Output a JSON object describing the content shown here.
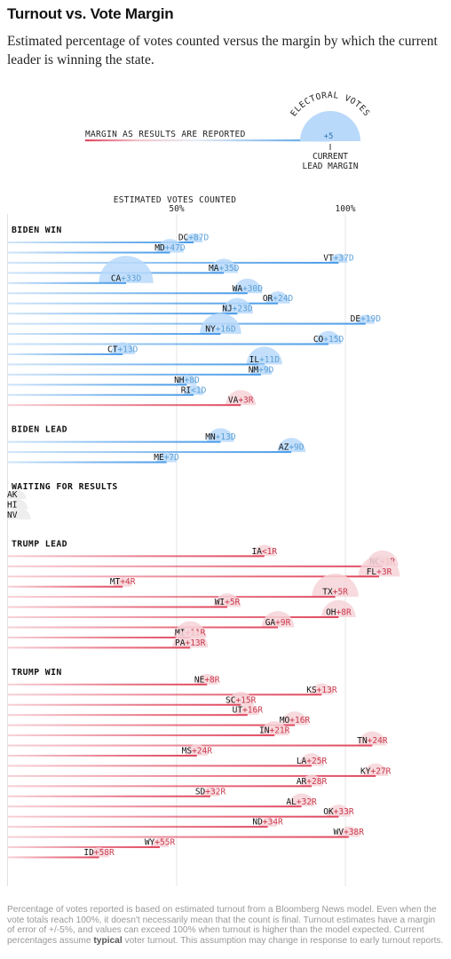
{
  "header": {
    "title": "Turnout vs. Vote Margin",
    "subtitle": "Estimated percentage of votes counted versus the margin by which the current leader is winning the state."
  },
  "legend": {
    "margin_label": "MARGIN AS RESULTS ARE REPORTED",
    "ev_label": "ELECTORAL VOTES",
    "sample_value": "+5",
    "lead_label_1": "CURRENT",
    "lead_label_2": "LEAD MARGIN"
  },
  "axis": {
    "title": "ESTIMATED VOTES COUNTED",
    "ticks": [
      {
        "value": 50,
        "label": "50%"
      },
      {
        "value": 100,
        "label": "100%"
      }
    ]
  },
  "colors": {
    "dem": "#4a9be8",
    "dem_bubble": "#b9d9fa",
    "dem_text": "#5b9fd6",
    "rep": "#e0475e",
    "rep_bubble": "#f6d3d8",
    "rep_text": "#c8394c",
    "grid": "#e6e6e6"
  },
  "footnote": {
    "text_before": "Percentage of votes reported is based on estimated turnout from a Bloomberg News model. Even when the vote totals reach 100%, it doesn't necessarily mean that the count is final. Turnout estimates have a margin of error of +/-5%, and values can exceed 100% when turnout is higher than the model expected. Current percentages assume ",
    "bold": "typical",
    "text_after": " voter turnout. This assumption may change in response to early turnout reports."
  },
  "chart_data": {
    "type": "bar",
    "x_axis": "estimated votes counted (%)",
    "xlim": [
      0,
      120
    ],
    "groups": [
      {
        "name": "BIDEN WIN",
        "states": [
          {
            "state": "DC",
            "margin": "+87D",
            "party": "D",
            "counted": 55,
            "ev": 3
          },
          {
            "state": "MD",
            "margin": "+47D",
            "party": "D",
            "counted": 48,
            "ev": 10
          },
          {
            "state": "VT",
            "margin": "+37D",
            "party": "D",
            "counted": 98,
            "ev": 3
          },
          {
            "state": "MA",
            "margin": "+35D",
            "party": "D",
            "counted": 64,
            "ev": 11
          },
          {
            "state": "CA",
            "margin": "+33D",
            "party": "D",
            "counted": 35,
            "ev": 55
          },
          {
            "state": "WA",
            "margin": "+30D",
            "party": "D",
            "counted": 71,
            "ev": 12
          },
          {
            "state": "OR",
            "margin": "+24D",
            "party": "D",
            "counted": 80,
            "ev": 7
          },
          {
            "state": "NJ",
            "margin": "+23D",
            "party": "D",
            "counted": 68,
            "ev": 14
          },
          {
            "state": "DE",
            "margin": "+19D",
            "party": "D",
            "counted": 106,
            "ev": 3
          },
          {
            "state": "NY",
            "margin": "+16D",
            "party": "D",
            "counted": 63,
            "ev": 29
          },
          {
            "state": "CO",
            "margin": "+15D",
            "party": "D",
            "counted": 95,
            "ev": 9
          },
          {
            "state": "CT",
            "margin": "+13D",
            "party": "D",
            "counted": 34,
            "ev": 7
          },
          {
            "state": "IL",
            "margin": "+11D",
            "party": "D",
            "counted": 76,
            "ev": 20
          },
          {
            "state": "NM",
            "margin": "+9D",
            "party": "D",
            "counted": 75,
            "ev": 5
          },
          {
            "state": "NH",
            "margin": "+8D",
            "party": "D",
            "counted": 53,
            "ev": 4
          },
          {
            "state": "RI",
            "margin": "<1D",
            "party": "D",
            "counted": 55,
            "ev": 4
          },
          {
            "state": "VA",
            "margin": "+3R",
            "party": "R",
            "counted": 69,
            "ev": 13
          }
        ]
      },
      {
        "name": "BIDEN LEAD",
        "states": [
          {
            "state": "MN",
            "margin": "+13D",
            "party": "D",
            "counted": 63,
            "ev": 10
          },
          {
            "state": "AZ",
            "margin": "+9D",
            "party": "D",
            "counted": 84,
            "ev": 11
          },
          {
            "state": "ME",
            "margin": "+7D",
            "party": "D",
            "counted": 47,
            "ev": 4
          }
        ]
      },
      {
        "name": "WAITING FOR RESULTS",
        "states": [
          {
            "state": "AK",
            "margin": "",
            "party": "",
            "counted": 0,
            "ev": 3
          },
          {
            "state": "HI",
            "margin": "",
            "party": "",
            "counted": 0,
            "ev": 4
          },
          {
            "state": "NV",
            "margin": "",
            "party": "",
            "counted": 0,
            "ev": 6
          }
        ]
      },
      {
        "name": "TRUMP LEAD",
        "states": [
          {
            "state": "IA",
            "margin": "<1R",
            "party": "R",
            "counted": 76,
            "ev": 6
          },
          {
            "state": "NC",
            "margin": "+1R",
            "party": "R",
            "counted": 111,
            "ev": 15
          },
          {
            "state": "FL",
            "margin": "+3R",
            "party": "R",
            "counted": 110,
            "ev": 29
          },
          {
            "state": "MT",
            "margin": "+4R",
            "party": "R",
            "counted": 34,
            "ev": 3
          },
          {
            "state": "TX",
            "margin": "+5R",
            "party": "R",
            "counted": 97,
            "ev": 38
          },
          {
            "state": "WI",
            "margin": "+5R",
            "party": "R",
            "counted": 65,
            "ev": 10
          },
          {
            "state": "OH",
            "margin": "+8R",
            "party": "R",
            "counted": 98,
            "ev": 18
          },
          {
            "state": "GA",
            "margin": "+9R",
            "party": "R",
            "counted": 80,
            "ev": 16
          },
          {
            "state": "MI",
            "margin": "+11R",
            "party": "R",
            "counted": 54,
            "ev": 16
          },
          {
            "state": "PA",
            "margin": "+13R",
            "party": "R",
            "counted": 54,
            "ev": 20
          }
        ]
      },
      {
        "name": "TRUMP WIN",
        "states": [
          {
            "state": "NE",
            "margin": "+8R",
            "party": "R",
            "counted": 59,
            "ev": 5
          },
          {
            "state": "KS",
            "margin": "+13R",
            "party": "R",
            "counted": 93,
            "ev": 6
          },
          {
            "state": "SC",
            "margin": "+15R",
            "party": "R",
            "counted": 69,
            "ev": 9
          },
          {
            "state": "UT",
            "margin": "+16R",
            "party": "R",
            "counted": 71,
            "ev": 6
          },
          {
            "state": "MO",
            "margin": "+16R",
            "party": "R",
            "counted": 85,
            "ev": 10
          },
          {
            "state": "IN",
            "margin": "+21R",
            "party": "R",
            "counted": 79,
            "ev": 11
          },
          {
            "state": "TN",
            "margin": "+24R",
            "party": "R",
            "counted": 108,
            "ev": 11
          },
          {
            "state": "MS",
            "margin": "+24R",
            "party": "R",
            "counted": 56,
            "ev": 6
          },
          {
            "state": "LA",
            "margin": "+25R",
            "party": "R",
            "counted": 90,
            "ev": 8
          },
          {
            "state": "KY",
            "margin": "+27R",
            "party": "R",
            "counted": 109,
            "ev": 8
          },
          {
            "state": "AR",
            "margin": "+28R",
            "party": "R",
            "counted": 90,
            "ev": 6
          },
          {
            "state": "SD",
            "margin": "+32R",
            "party": "R",
            "counted": 60,
            "ev": 3
          },
          {
            "state": "AL",
            "margin": "+32R",
            "party": "R",
            "counted": 87,
            "ev": 9
          },
          {
            "state": "OK",
            "margin": "+33R",
            "party": "R",
            "counted": 98,
            "ev": 7
          },
          {
            "state": "ND",
            "margin": "+34R",
            "party": "R",
            "counted": 77,
            "ev": 3
          },
          {
            "state": "WV",
            "margin": "+38R",
            "party": "R",
            "counted": 101,
            "ev": 5
          },
          {
            "state": "WY",
            "margin": "+55R",
            "party": "R",
            "counted": 45,
            "ev": 3
          },
          {
            "state": "ID",
            "margin": "+58R",
            "party": "R",
            "counted": 27,
            "ev": 4
          }
        ]
      }
    ]
  }
}
